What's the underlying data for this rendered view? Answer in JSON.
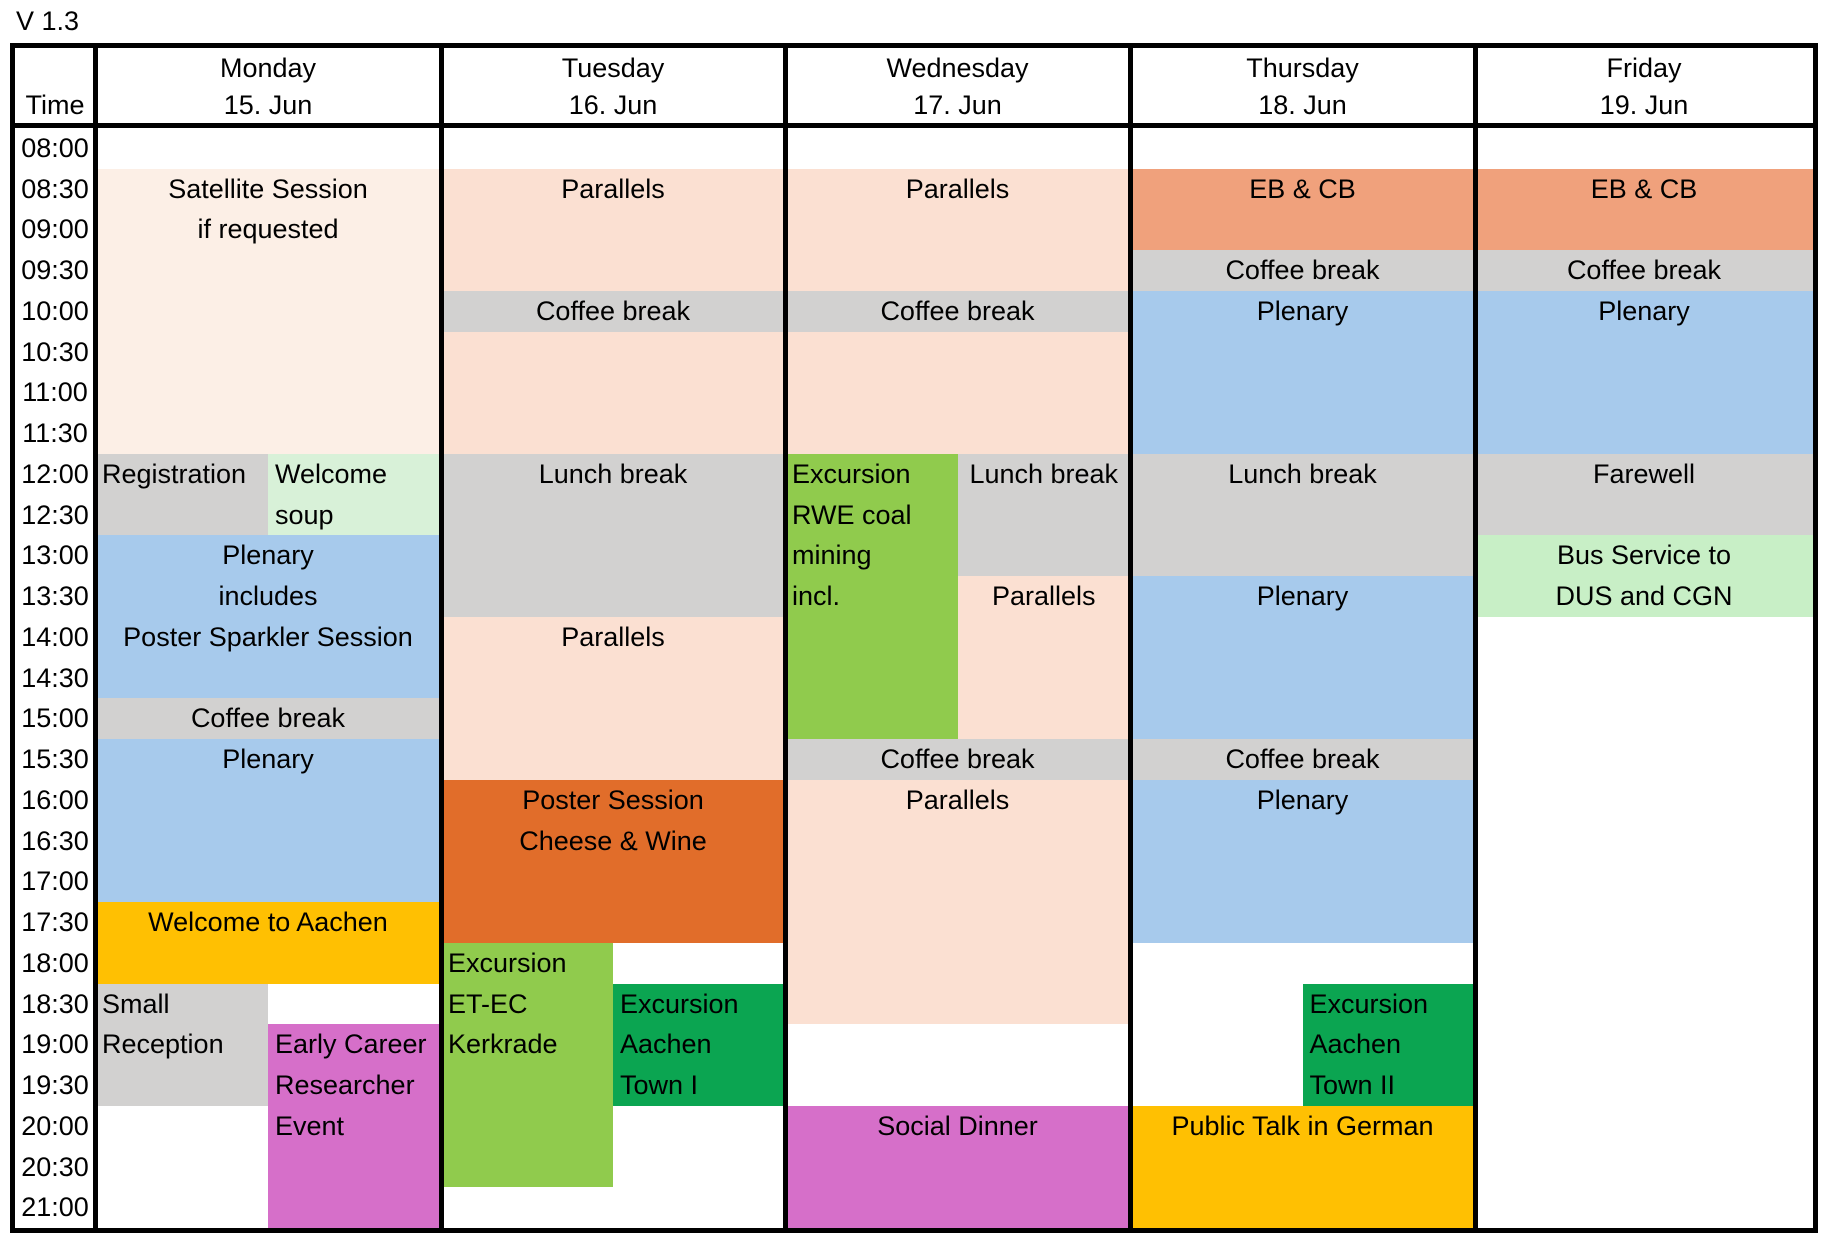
{
  "version_label": "V 1.3",
  "header": {
    "time_label": "Time",
    "days": [
      {
        "name": "Monday",
        "date": "15. Jun"
      },
      {
        "name": "Tuesday",
        "date": "16. Jun"
      },
      {
        "name": "Wednesday",
        "date": "17. Jun"
      },
      {
        "name": "Thursday",
        "date": "18. Jun"
      },
      {
        "name": "Friday",
        "date": "19. Jun"
      }
    ]
  },
  "times": [
    "08:00",
    "08:30",
    "09:00",
    "09:30",
    "10:00",
    "10:30",
    "11:00",
    "11:30",
    "12:00",
    "12:30",
    "13:00",
    "13:30",
    "14:00",
    "14:30",
    "15:00",
    "15:30",
    "16:00",
    "16:30",
    "17:00",
    "17:30",
    "18:00",
    "18:30",
    "19:00",
    "19:30",
    "20:00",
    "20:30",
    "21:00"
  ],
  "colors": {
    "peach_light": "#FCEFE6",
    "peach": "#FBE0D2",
    "gray": "#D2D1D0",
    "blue": "#A7CAEC",
    "mint": "#D8F1D8",
    "mint2": "#C8EFC6",
    "salmon": "#F0A17C",
    "orange": "#E16D2A",
    "bright_green": "#90CB4D",
    "dark_green": "#0BA551",
    "yellow": "#FFC002",
    "magenta": "#D66FC9",
    "border": "#000000"
  },
  "events": [
    {
      "id": "mon-satellite-session",
      "day": 0,
      "half": "full",
      "start": 1,
      "span": 7,
      "color": "peach_light",
      "align": "center",
      "lines": [
        "Satellite Session",
        "if requested"
      ]
    },
    {
      "id": "mon-registration",
      "day": 0,
      "half": "left",
      "start": 8,
      "span": 2,
      "color": "gray",
      "align": "left",
      "lines": [
        "Registration"
      ]
    },
    {
      "id": "mon-welcome-soup",
      "day": 0,
      "half": "right",
      "start": 8,
      "span": 2,
      "color": "mint",
      "align": "left",
      "lines": [
        "Welcome",
        "soup"
      ]
    },
    {
      "id": "mon-plenary-poster-sparkler",
      "day": 0,
      "half": "full",
      "start": 10,
      "span": 4,
      "color": "blue",
      "align": "center",
      "lines": [
        "Plenary",
        "includes",
        "Poster Sparkler Session"
      ]
    },
    {
      "id": "mon-coffee-break",
      "day": 0,
      "half": "full",
      "start": 14,
      "span": 1,
      "color": "gray",
      "align": "center",
      "lines": [
        "Coffee break"
      ]
    },
    {
      "id": "mon-plenary-afternoon",
      "day": 0,
      "half": "full",
      "start": 15,
      "span": 4,
      "color": "blue",
      "align": "center",
      "lines": [
        "Plenary"
      ]
    },
    {
      "id": "mon-welcome-to-aachen",
      "day": 0,
      "half": "full",
      "start": 19,
      "span": 2,
      "color": "yellow",
      "align": "center",
      "lines": [
        "Welcome to Aachen"
      ]
    },
    {
      "id": "mon-small-reception",
      "day": 0,
      "half": "left",
      "start": 21,
      "span": 3,
      "color": "gray",
      "align": "left",
      "lines": [
        "Small",
        "Reception"
      ]
    },
    {
      "id": "mon-early-career-event",
      "day": 0,
      "half": "right",
      "start": 22,
      "span": 5,
      "color": "magenta",
      "align": "left",
      "lines": [
        "Early Career",
        "Researcher",
        "Event"
      ]
    },
    {
      "id": "tue-parallels-morning",
      "day": 1,
      "half": "full",
      "start": 1,
      "span": 3,
      "color": "peach",
      "align": "center",
      "lines": [
        "Parallels"
      ]
    },
    {
      "id": "tue-coffee-break",
      "day": 1,
      "half": "full",
      "start": 4,
      "span": 1,
      "color": "gray",
      "align": "center",
      "lines": [
        "Coffee break"
      ]
    },
    {
      "id": "tue-parallels-late-morning",
      "day": 1,
      "half": "full",
      "start": 5,
      "span": 3,
      "color": "peach",
      "align": "center",
      "lines": []
    },
    {
      "id": "tue-lunch-break",
      "day": 1,
      "half": "full",
      "start": 8,
      "span": 4,
      "color": "gray",
      "align": "center",
      "lines": [
        "Lunch break"
      ]
    },
    {
      "id": "tue-parallels-afternoon",
      "day": 1,
      "half": "full",
      "start": 12,
      "span": 4,
      "color": "peach",
      "align": "center",
      "lines": [
        "Parallels"
      ]
    },
    {
      "id": "tue-poster-session",
      "day": 1,
      "half": "full",
      "start": 16,
      "span": 4,
      "color": "orange",
      "align": "center",
      "lines": [
        "Poster Session",
        "Cheese & Wine"
      ]
    },
    {
      "id": "tue-excursion-kerkrade",
      "day": 1,
      "half": "left",
      "start": 20,
      "span": 6,
      "color": "bright_green",
      "align": "left",
      "lines": [
        "Excursion",
        "ET-EC",
        "Kerkrade"
      ]
    },
    {
      "id": "tue-excursion-aachen-town-1",
      "day": 1,
      "half": "right",
      "start": 21,
      "span": 3,
      "color": "dark_green",
      "align": "left",
      "lines": [
        "Excursion",
        "Aachen",
        "Town I"
      ]
    },
    {
      "id": "wed-parallels-morning",
      "day": 2,
      "half": "full",
      "start": 1,
      "span": 3,
      "color": "peach",
      "align": "center",
      "lines": [
        "Parallels"
      ]
    },
    {
      "id": "wed-coffee-break-1",
      "day": 2,
      "half": "full",
      "start": 4,
      "span": 1,
      "color": "gray",
      "align": "center",
      "lines": [
        "Coffee break"
      ]
    },
    {
      "id": "wed-parallels-late-morning",
      "day": 2,
      "half": "full",
      "start": 5,
      "span": 3,
      "color": "peach",
      "align": "center",
      "lines": []
    },
    {
      "id": "wed-excursion-rwe",
      "day": 2,
      "half": "left",
      "start": 8,
      "span": 7,
      "color": "bright_green",
      "align": "left",
      "lines": [
        "Excursion",
        "RWE coal",
        "mining",
        "incl."
      ]
    },
    {
      "id": "wed-lunch-break",
      "day": 2,
      "half": "right",
      "start": 8,
      "span": 3,
      "color": "gray",
      "align": "center",
      "lines": [
        "Lunch break"
      ]
    },
    {
      "id": "wed-parallels-early-pm",
      "day": 2,
      "half": "right",
      "start": 11,
      "span": 4,
      "color": "peach",
      "align": "center",
      "lines": [
        "Parallels"
      ]
    },
    {
      "id": "wed-coffee-break-2",
      "day": 2,
      "half": "full",
      "start": 15,
      "span": 1,
      "color": "gray",
      "align": "center",
      "lines": [
        "Coffee break"
      ]
    },
    {
      "id": "wed-parallels-late-pm",
      "day": 2,
      "half": "full",
      "start": 16,
      "span": 6,
      "color": "peach",
      "align": "center",
      "lines": [
        "Parallels"
      ]
    },
    {
      "id": "wed-social-dinner",
      "day": 2,
      "half": "full",
      "start": 24,
      "span": 3,
      "color": "magenta",
      "align": "center",
      "lines": [
        "Social Dinner"
      ]
    },
    {
      "id": "thu-eb-cb",
      "day": 3,
      "half": "full",
      "start": 1,
      "span": 2,
      "color": "salmon",
      "align": "center",
      "lines": [
        "EB & CB"
      ]
    },
    {
      "id": "thu-coffee-break-1",
      "day": 3,
      "half": "full",
      "start": 3,
      "span": 1,
      "color": "gray",
      "align": "center",
      "lines": [
        "Coffee break"
      ]
    },
    {
      "id": "thu-plenary-morning",
      "day": 3,
      "half": "full",
      "start": 4,
      "span": 4,
      "color": "blue",
      "align": "center",
      "lines": [
        "Plenary"
      ]
    },
    {
      "id": "thu-lunch-break",
      "day": 3,
      "half": "full",
      "start": 8,
      "span": 3,
      "color": "gray",
      "align": "center",
      "lines": [
        "Lunch break"
      ]
    },
    {
      "id": "thu-plenary-early-pm",
      "day": 3,
      "half": "full",
      "start": 11,
      "span": 4,
      "color": "blue",
      "align": "center",
      "lines": [
        "Plenary"
      ]
    },
    {
      "id": "thu-coffee-break-2",
      "day": 3,
      "half": "full",
      "start": 15,
      "span": 1,
      "color": "gray",
      "align": "center",
      "lines": [
        "Coffee break"
      ]
    },
    {
      "id": "thu-plenary-late-pm",
      "day": 3,
      "half": "full",
      "start": 16,
      "span": 4,
      "color": "blue",
      "align": "center",
      "lines": [
        "Plenary"
      ]
    },
    {
      "id": "thu-excursion-aachen-town-2",
      "day": 3,
      "half": "right",
      "start": 21,
      "span": 3,
      "color": "dark_green",
      "align": "left",
      "lines": [
        "Excursion",
        "Aachen",
        "Town II"
      ]
    },
    {
      "id": "thu-public-talk",
      "day": 3,
      "half": "full",
      "start": 24,
      "span": 3,
      "color": "yellow",
      "align": "center",
      "lines": [
        "Public Talk in German"
      ]
    },
    {
      "id": "fri-eb-cb",
      "day": 4,
      "half": "full",
      "start": 1,
      "span": 2,
      "color": "salmon",
      "align": "center",
      "lines": [
        "EB & CB"
      ]
    },
    {
      "id": "fri-coffee-break",
      "day": 4,
      "half": "full",
      "start": 3,
      "span": 1,
      "color": "gray",
      "align": "center",
      "lines": [
        "Coffee break"
      ]
    },
    {
      "id": "fri-plenary-morning",
      "day": 4,
      "half": "full",
      "start": 4,
      "span": 4,
      "color": "blue",
      "align": "center",
      "lines": [
        "Plenary"
      ]
    },
    {
      "id": "fri-farewell",
      "day": 4,
      "half": "full",
      "start": 8,
      "span": 2,
      "color": "gray",
      "align": "center",
      "lines": [
        "Farewell"
      ]
    },
    {
      "id": "fri-bus-service",
      "day": 4,
      "half": "full",
      "start": 10,
      "span": 2,
      "color": "mint2",
      "align": "center",
      "lines": [
        "Bus Service to",
        "DUS and CGN"
      ]
    }
  ]
}
